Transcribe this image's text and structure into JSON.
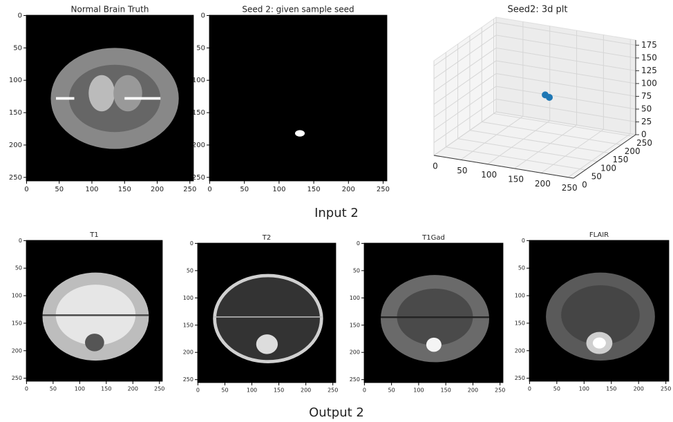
{
  "captions": [
    "Input 2",
    "Output 2"
  ],
  "chart_data": [
    {
      "type": "image",
      "title": "Normal Brain Truth",
      "xlim": [
        -0.5,
        255.5
      ],
      "ylim": [
        255.5,
        -0.5
      ],
      "xticks": [
        0,
        50,
        100,
        150,
        200,
        250
      ],
      "yticks": [
        0,
        50,
        100,
        150,
        200,
        250
      ]
    },
    {
      "type": "image",
      "title": "Seed 2: given sample seed",
      "xlim": [
        -0.5,
        255.5
      ],
      "ylim": [
        255.5,
        -0.5
      ],
      "xticks": [
        0,
        50,
        100,
        150,
        200,
        250
      ],
      "yticks": [
        0,
        50,
        100,
        150,
        200,
        250
      ]
    },
    {
      "type": "scatter3d",
      "title": "Seed2: 3d plt",
      "x": [
        128,
        133
      ],
      "y": [
        178,
        184
      ],
      "z": [
        82,
        76
      ],
      "color": "#1f77b4",
      "xlim": [
        0,
        260
      ],
      "ylim": [
        0,
        260
      ],
      "zlim": [
        0,
        185
      ],
      "xticks": [
        0,
        50,
        100,
        150,
        200,
        250
      ],
      "yticks": [
        0,
        50,
        100,
        150,
        200,
        250
      ],
      "zticks": [
        0,
        25,
        50,
        75,
        100,
        125,
        150,
        175
      ]
    },
    {
      "type": "image",
      "title": "T1",
      "xlim": [
        -0.5,
        255.5
      ],
      "ylim": [
        255.5,
        -0.5
      ],
      "xticks": [
        0,
        50,
        100,
        150,
        200,
        250
      ],
      "yticks": [
        0,
        50,
        100,
        150,
        200,
        250
      ]
    },
    {
      "type": "image",
      "title": "T2",
      "xlim": [
        -0.5,
        255.5
      ],
      "ylim": [
        255.5,
        -0.5
      ],
      "xticks": [
        0,
        50,
        100,
        150,
        200,
        250
      ],
      "yticks": [
        0,
        50,
        100,
        150,
        200,
        250
      ]
    },
    {
      "type": "image",
      "title": "T1Gad",
      "xlim": [
        -0.5,
        255.5
      ],
      "ylim": [
        255.5,
        -0.5
      ],
      "xticks": [
        0,
        50,
        100,
        150,
        200,
        250
      ],
      "yticks": [
        0,
        50,
        100,
        150,
        200,
        250
      ]
    },
    {
      "type": "image",
      "title": "FLAIR",
      "xlim": [
        -0.5,
        255.5
      ],
      "ylim": [
        255.5,
        -0.5
      ],
      "xticks": [
        0,
        50,
        100,
        150,
        200,
        250
      ],
      "yticks": [
        0,
        50,
        100,
        150,
        200,
        250
      ]
    }
  ]
}
